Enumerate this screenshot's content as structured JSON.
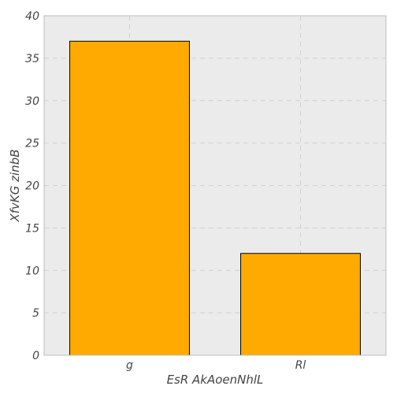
{
  "chart_data": {
    "type": "bar",
    "categories": [
      "g",
      "Rl"
    ],
    "values": [
      37,
      12
    ],
    "title": "",
    "xlabel": "EsR AkAoenNhlL",
    "ylabel": "XfvKG zinbB",
    "ylim": [
      0,
      40
    ],
    "yticks": [
      0,
      5,
      10,
      15,
      20,
      25,
      30,
      35,
      40
    ],
    "grid": true,
    "bar_color": "#FFAA00",
    "bar_edge_color": "#000000",
    "background_color": "#EBEBEB",
    "grid_color": "#D0D0D0"
  }
}
